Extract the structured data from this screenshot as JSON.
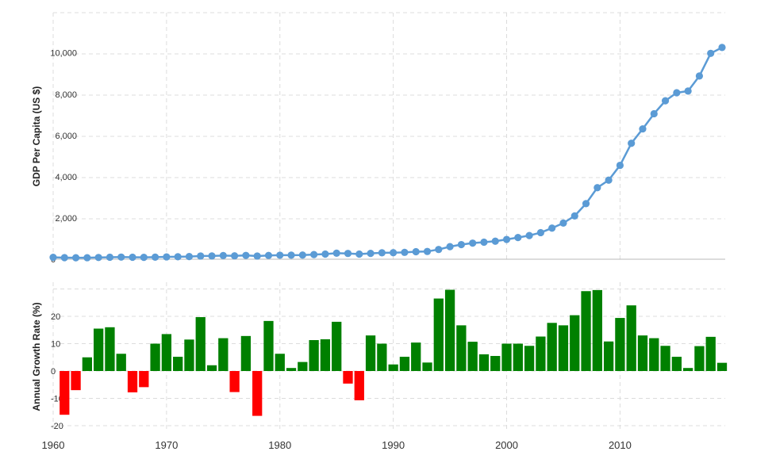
{
  "chart_data": [
    {
      "type": "line",
      "ylabel": "GDP Per Capita (US $)",
      "xlim": [
        1960,
        2019
      ],
      "ylim": [
        0,
        12000
      ],
      "yticks": [
        0,
        2000,
        4000,
        6000,
        8000,
        10000
      ],
      "ytick_labels": [
        "0",
        "2,000",
        "4,000",
        "6,000",
        "8,000",
        "10,000"
      ],
      "grid": true,
      "line_color": "#5b9bd5",
      "x": [
        1960,
        1961,
        1962,
        1963,
        1964,
        1965,
        1966,
        1967,
        1968,
        1969,
        1970,
        1971,
        1972,
        1973,
        1974,
        1975,
        1976,
        1977,
        1978,
        1979,
        1980,
        1981,
        1982,
        1983,
        1984,
        1985,
        1986,
        1987,
        1988,
        1989,
        1990,
        1991,
        1992,
        1993,
        1994,
        1995,
        1996,
        1997,
        1998,
        1999,
        2000,
        2001,
        2002,
        2003,
        2004,
        2005,
        2006,
        2007,
        2008,
        2009,
        2010,
        2011,
        2012,
        2013,
        2014,
        2015,
        2016,
        2017,
        2018,
        2019
      ],
      "y": [
        90,
        76,
        71,
        74,
        85,
        98,
        104,
        96,
        91,
        100,
        113,
        119,
        131,
        156,
        160,
        178,
        165,
        185,
        156,
        184,
        195,
        197,
        203,
        225,
        250,
        294,
        281,
        251,
        283,
        311,
        317,
        333,
        366,
        377,
        473,
        610,
        709,
        781,
        828,
        873,
        959,
        1053,
        1149,
        1289,
        1509,
        1753,
        2099,
        2694,
        3468,
        3832,
        4550,
        5618,
        6317,
        7051,
        7679,
        8067,
        8148,
        8879,
        9977,
        10262
      ]
    },
    {
      "type": "bar",
      "ylabel": "Annual Growth Rate (%)",
      "xlim": [
        1960,
        2019
      ],
      "ylim": [
        -20,
        30
      ],
      "yticks": [
        -20,
        -10,
        0,
        10,
        20
      ],
      "ytick_labels": [
        "-20",
        "-10",
        "0",
        "10",
        "20"
      ],
      "xticks": [
        1960,
        1970,
        1980,
        1990,
        2000,
        2010
      ],
      "xtick_labels": [
        "1960",
        "1970",
        "1980",
        "1990",
        "2000",
        "2010"
      ],
      "grid": true,
      "positive_color": "#008000",
      "negative_color": "#ff0000",
      "x": [
        1961,
        1962,
        1963,
        1964,
        1965,
        1966,
        1967,
        1968,
        1969,
        1970,
        1971,
        1972,
        1973,
        1974,
        1975,
        1976,
        1977,
        1978,
        1979,
        1980,
        1981,
        1982,
        1983,
        1984,
        1985,
        1986,
        1987,
        1988,
        1989,
        1990,
        1991,
        1992,
        1993,
        1994,
        1995,
        1996,
        1997,
        1998,
        1999,
        2000,
        2001,
        2002,
        2003,
        2004,
        2005,
        2006,
        2007,
        2008,
        2009,
        2010,
        2011,
        2012,
        2013,
        2014,
        2015,
        2016,
        2017,
        2018,
        2019
      ],
      "values": [
        -16,
        -7,
        5,
        15.5,
        16,
        6.3,
        -7.8,
        -5.9,
        10,
        13.5,
        5.2,
        11.5,
        19.7,
        2.1,
        12,
        -7.7,
        12.8,
        -16.4,
        18.3,
        6.3,
        1.1,
        3.3,
        11.3,
        11.6,
        18,
        -4.6,
        -10.7,
        13,
        10,
        2.4,
        5.2,
        10.4,
        3.1,
        26.5,
        29.7,
        16.7,
        10.7,
        6.1,
        5.5,
        10,
        10,
        9.2,
        12.6,
        17.6,
        16.7,
        20.4,
        29.2,
        29.6,
        10.8,
        19.4,
        24,
        13,
        12,
        9.2,
        5.2,
        1.1,
        9.1,
        12.5,
        3
      ]
    }
  ]
}
